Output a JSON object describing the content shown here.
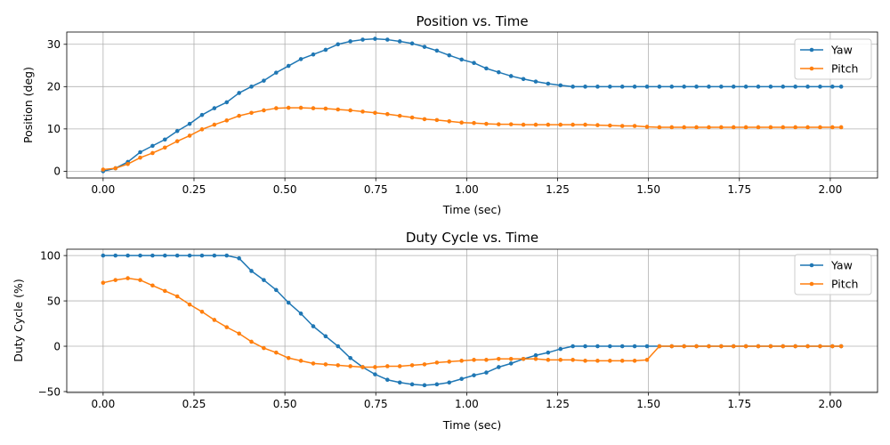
{
  "chart_data": [
    {
      "type": "line",
      "title": "Position vs. Time",
      "xlabel": "Time (sec)",
      "ylabel": "Position (deg)",
      "xlim": [
        -0.1,
        2.13
      ],
      "ylim": [
        -1.6,
        32.9
      ],
      "xticks": [
        0.0,
        0.25,
        0.5,
        0.75,
        1.0,
        1.25,
        1.5,
        1.75,
        2.0
      ],
      "xtick_labels": [
        "0.00",
        "0.25",
        "0.50",
        "0.75",
        "1.00",
        "1.25",
        "1.50",
        "1.75",
        "2.00"
      ],
      "yticks": [
        0,
        10,
        20,
        30
      ],
      "ytick_labels": [
        "0",
        "10",
        "20",
        "30"
      ],
      "grid": true,
      "legend": "top-right",
      "x": [
        0.0,
        0.034,
        0.068,
        0.102,
        0.136,
        0.17,
        0.204,
        0.238,
        0.272,
        0.306,
        0.34,
        0.374,
        0.408,
        0.442,
        0.476,
        0.51,
        0.544,
        0.578,
        0.612,
        0.646,
        0.68,
        0.714,
        0.748,
        0.782,
        0.816,
        0.85,
        0.884,
        0.918,
        0.952,
        0.986,
        1.02,
        1.054,
        1.088,
        1.122,
        1.156,
        1.19,
        1.224,
        1.258,
        1.292,
        1.326,
        1.36,
        1.394,
        1.428,
        1.462,
        1.496,
        1.53,
        1.564,
        1.598,
        1.632,
        1.666,
        1.7,
        1.734,
        1.768,
        1.802,
        1.836,
        1.87,
        1.904,
        1.938,
        1.972,
        2.006,
        2.03
      ],
      "series": [
        {
          "name": "Yaw",
          "color": "#1f77b4",
          "values": [
            0.0,
            0.7,
            2.2,
            4.5,
            6.0,
            7.5,
            9.5,
            11.2,
            13.3,
            14.9,
            16.3,
            18.5,
            20.0,
            21.4,
            23.3,
            24.9,
            26.5,
            27.6,
            28.7,
            30.0,
            30.7,
            31.1,
            31.3,
            31.1,
            30.7,
            30.2,
            29.4,
            28.5,
            27.4,
            26.4,
            25.6,
            24.3,
            23.4,
            22.5,
            21.8,
            21.2,
            20.7,
            20.3,
            20.0,
            20.0,
            20.0,
            20.0,
            20.0,
            20.0,
            20.0,
            20.0,
            20.0,
            20.0,
            20.0,
            20.0,
            20.0,
            20.0,
            20.0,
            20.0,
            20.0,
            20.0,
            20.0,
            20.0,
            20.0,
            20.0,
            20.0
          ]
        },
        {
          "name": "Pitch",
          "color": "#ff7f0e",
          "values": [
            0.4,
            0.7,
            1.7,
            3.2,
            4.3,
            5.6,
            7.1,
            8.4,
            9.9,
            11.0,
            12.0,
            13.1,
            13.8,
            14.4,
            14.9,
            15.0,
            15.0,
            14.9,
            14.8,
            14.6,
            14.4,
            14.1,
            13.8,
            13.5,
            13.1,
            12.7,
            12.3,
            12.1,
            11.8,
            11.5,
            11.4,
            11.2,
            11.1,
            11.1,
            11.0,
            11.0,
            11.0,
            11.0,
            11.0,
            11.0,
            10.9,
            10.8,
            10.7,
            10.7,
            10.5,
            10.4,
            10.4,
            10.4,
            10.4,
            10.4,
            10.4,
            10.4,
            10.4,
            10.4,
            10.4,
            10.4,
            10.4,
            10.4,
            10.4,
            10.4,
            10.4
          ]
        }
      ]
    },
    {
      "type": "line",
      "title": "Duty Cycle vs. Time",
      "xlabel": "Time (sec)",
      "ylabel": "Duty Cycle (%)",
      "xlim": [
        -0.1,
        2.13
      ],
      "ylim": [
        -51,
        107
      ],
      "xticks": [
        0.0,
        0.25,
        0.5,
        0.75,
        1.0,
        1.25,
        1.5,
        1.75,
        2.0
      ],
      "xtick_labels": [
        "0.00",
        "0.25",
        "0.50",
        "0.75",
        "1.00",
        "1.25",
        "1.50",
        "1.75",
        "2.00"
      ],
      "yticks": [
        -50,
        0,
        50,
        100
      ],
      "ytick_labels": [
        "−50",
        "0",
        "50",
        "100"
      ],
      "grid": true,
      "legend": "top-right",
      "x": [
        0.0,
        0.034,
        0.068,
        0.102,
        0.136,
        0.17,
        0.204,
        0.238,
        0.272,
        0.306,
        0.34,
        0.374,
        0.408,
        0.442,
        0.476,
        0.51,
        0.544,
        0.578,
        0.612,
        0.646,
        0.68,
        0.714,
        0.748,
        0.782,
        0.816,
        0.85,
        0.884,
        0.918,
        0.952,
        0.986,
        1.02,
        1.054,
        1.088,
        1.122,
        1.156,
        1.19,
        1.224,
        1.258,
        1.292,
        1.326,
        1.36,
        1.394,
        1.428,
        1.462,
        1.496,
        1.53,
        1.564,
        1.598,
        1.632,
        1.666,
        1.7,
        1.734,
        1.768,
        1.802,
        1.836,
        1.87,
        1.904,
        1.938,
        1.972,
        2.006,
        2.03
      ],
      "series": [
        {
          "name": "Yaw",
          "color": "#1f77b4",
          "values": [
            100,
            100,
            100,
            100,
            100,
            100,
            100,
            100,
            100,
            100,
            100,
            97,
            83,
            73,
            62,
            48,
            36,
            22,
            11,
            0,
            -13,
            -23,
            -31,
            -37,
            -40,
            -42,
            -43,
            -42,
            -40,
            -36,
            -32,
            -29,
            -23,
            -19,
            -14,
            -10,
            -7,
            -3,
            0,
            0,
            0,
            0,
            0,
            0,
            0,
            0,
            0,
            0,
            0,
            0,
            0,
            0,
            0,
            0,
            0,
            0,
            0,
            0,
            0,
            0,
            0
          ]
        },
        {
          "name": "Pitch",
          "color": "#ff7f0e",
          "values": [
            70,
            73,
            75,
            73,
            67,
            61,
            55,
            46,
            38,
            29,
            21,
            14,
            5,
            -2,
            -7,
            -13,
            -16,
            -19,
            -20,
            -21,
            -22,
            -23,
            -23,
            -22,
            -22,
            -21,
            -20,
            -18,
            -17,
            -16,
            -15,
            -15,
            -14,
            -14,
            -14,
            -14,
            -15,
            -15,
            -15,
            -16,
            -16,
            -16,
            -16,
            -16,
            -15,
            0,
            0,
            0,
            0,
            0,
            0,
            0,
            0,
            0,
            0,
            0,
            0,
            0,
            0,
            0,
            0
          ]
        }
      ]
    }
  ]
}
